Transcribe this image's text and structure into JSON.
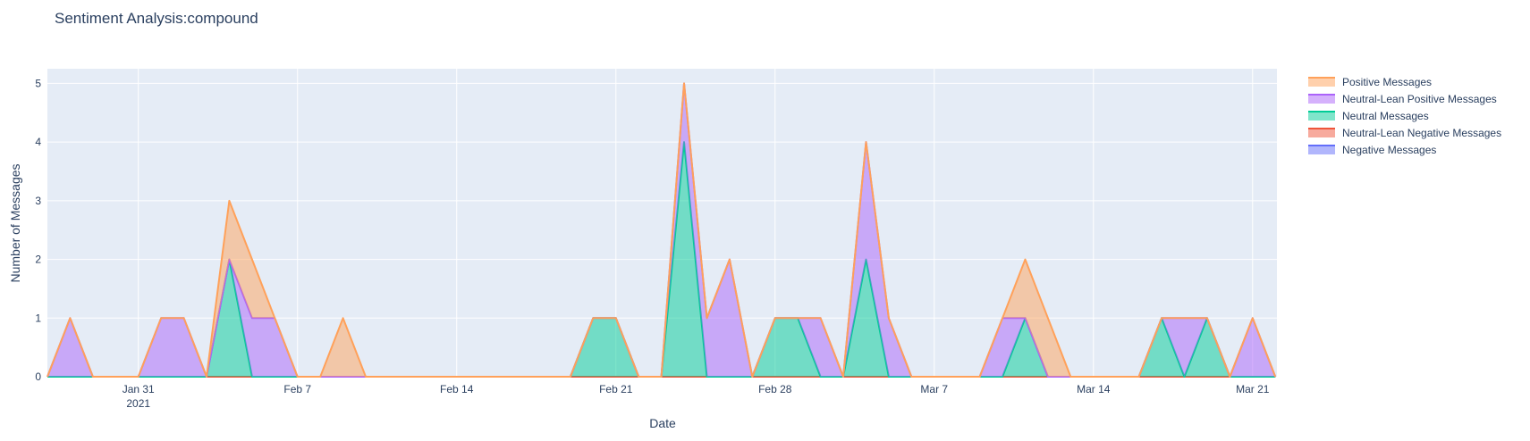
{
  "chart_data": {
    "type": "area",
    "title": "Sentiment Analysis:compound",
    "xlabel": "Date",
    "ylabel": "Number of Messages",
    "x_start": "2021-01-27",
    "x": [
      "Jan 27",
      "Jan 28",
      "Jan 29",
      "Jan 30",
      "Jan 31",
      "Feb 1",
      "Feb 2",
      "Feb 3",
      "Feb 4",
      "Feb 5",
      "Feb 6",
      "Feb 7",
      "Feb 8",
      "Feb 9",
      "Feb 10",
      "Feb 11",
      "Feb 12",
      "Feb 13",
      "Feb 14",
      "Feb 15",
      "Feb 16",
      "Feb 17",
      "Feb 18",
      "Feb 19",
      "Feb 20",
      "Feb 21",
      "Feb 22",
      "Feb 23",
      "Feb 24",
      "Feb 25",
      "Feb 26",
      "Feb 27",
      "Feb 28",
      "Mar 1",
      "Mar 2",
      "Mar 3",
      "Mar 4",
      "Mar 5",
      "Mar 6",
      "Mar 7",
      "Mar 8",
      "Mar 9",
      "Mar 10",
      "Mar 11",
      "Mar 12",
      "Mar 13",
      "Mar 14",
      "Mar 15",
      "Mar 16",
      "Mar 17",
      "Mar 18",
      "Mar 19",
      "Mar 20",
      "Mar 21",
      "Mar 22"
    ],
    "series": [
      {
        "name": "Negative Messages",
        "color": "#636efa",
        "fill": "rgba(99,110,250,0.5)",
        "values": [
          0,
          0,
          0,
          0,
          0,
          0,
          0,
          0,
          0,
          0,
          0,
          0,
          0,
          0,
          0,
          0,
          0,
          0,
          0,
          0,
          0,
          0,
          0,
          0,
          0,
          0,
          0,
          0,
          0,
          0,
          0,
          0,
          0,
          0,
          0,
          0,
          0,
          0,
          0,
          0,
          0,
          0,
          0,
          0,
          0,
          0,
          0,
          0,
          0,
          0,
          0,
          0,
          0,
          0,
          0
        ]
      },
      {
        "name": "Neutral-Lean Negative Messages",
        "color": "#ef553b",
        "fill": "rgba(239,85,59,0.5)",
        "values": [
          0,
          0,
          0,
          0,
          0,
          0,
          0,
          0,
          0,
          0,
          0,
          0,
          0,
          0,
          0,
          0,
          0,
          0,
          0,
          0,
          0,
          0,
          0,
          0,
          0,
          0,
          0,
          0,
          0,
          0,
          0,
          0,
          0,
          0,
          0,
          0,
          0,
          0,
          0,
          0,
          0,
          0,
          0,
          0,
          0,
          0,
          0,
          0,
          0,
          0,
          0,
          0,
          0,
          0,
          0
        ]
      },
      {
        "name": "Neutral Messages",
        "color": "#00cc96",
        "fill": "rgba(0,204,150,0.5)",
        "values": [
          0,
          0,
          0,
          0,
          0,
          0,
          0,
          0,
          2,
          0,
          0,
          0,
          0,
          0,
          0,
          0,
          0,
          0,
          0,
          0,
          0,
          0,
          0,
          0,
          1,
          1,
          0,
          0,
          4,
          0,
          0,
          0,
          1,
          1,
          0,
          0,
          2,
          0,
          0,
          0,
          0,
          0,
          0,
          1,
          0,
          0,
          0,
          0,
          0,
          1,
          0,
          1,
          0,
          0,
          0
        ]
      },
      {
        "name": "Neutral-Lean Positive Messages",
        "color": "#ab63fa",
        "fill": "rgba(171,99,250,0.5)",
        "values": [
          0,
          1,
          0,
          0,
          0,
          1,
          1,
          0,
          0,
          1,
          1,
          0,
          0,
          0,
          0,
          0,
          0,
          0,
          0,
          0,
          0,
          0,
          0,
          0,
          0,
          0,
          0,
          0,
          1,
          1,
          2,
          0,
          0,
          0,
          1,
          0,
          2,
          1,
          0,
          0,
          0,
          0,
          1,
          0,
          0,
          0,
          0,
          0,
          0,
          0,
          1,
          0,
          0,
          1,
          0
        ]
      },
      {
        "name": "Positive Messages",
        "color": "#ffa15a",
        "fill": "rgba(255,161,90,0.5)",
        "values": [
          0,
          0,
          0,
          0,
          0,
          0,
          0,
          0,
          1,
          1,
          0,
          0,
          0,
          1,
          0,
          0,
          0,
          0,
          0,
          0,
          0,
          0,
          0,
          0,
          0,
          0,
          0,
          0,
          0,
          0,
          0,
          0,
          0,
          0,
          0,
          0,
          0,
          0,
          0,
          0,
          0,
          0,
          0,
          1,
          1,
          0,
          0,
          0,
          0,
          0,
          0,
          0,
          0,
          0,
          0
        ]
      }
    ],
    "legend_order": [
      "Positive Messages",
      "Neutral-Lean Positive Messages",
      "Neutral Messages",
      "Neutral-Lean Negative Messages",
      "Negative Messages"
    ],
    "xticks": [
      {
        "date": "Jan 31",
        "label": "Jan 31",
        "sublabel": "2021"
      },
      {
        "date": "Feb 7",
        "label": "Feb 7",
        "sublabel": ""
      },
      {
        "date": "Feb 14",
        "label": "Feb 14",
        "sublabel": ""
      },
      {
        "date": "Feb 21",
        "label": "Feb 21",
        "sublabel": ""
      },
      {
        "date": "Feb 28",
        "label": "Feb 28",
        "sublabel": ""
      },
      {
        "date": "Mar 7",
        "label": "Mar 7",
        "sublabel": ""
      },
      {
        "date": "Mar 14",
        "label": "Mar 14",
        "sublabel": ""
      },
      {
        "date": "Mar 21",
        "label": "Mar 21",
        "sublabel": ""
      }
    ],
    "yticks": [
      "0",
      "1",
      "2",
      "3",
      "4",
      "5"
    ],
    "ylim": [
      0,
      5.25
    ],
    "xlim": [
      "Jan 27",
      "Mar 28"
    ],
    "grid": true,
    "legend_position": "top-right",
    "plot_bg": "#e5ecf6"
  }
}
